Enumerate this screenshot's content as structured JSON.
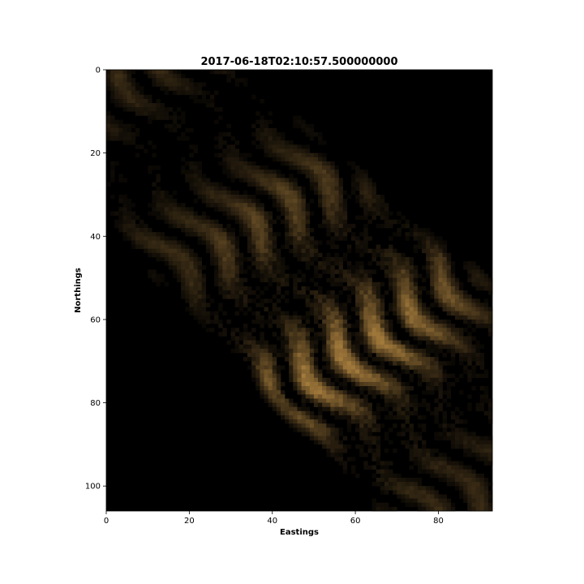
{
  "chart_data": {
    "type": "heatmap",
    "title": "2017-06-18T02:10:57.500000000",
    "xlabel": "Eastings",
    "ylabel": "Northings",
    "xlim": [
      0,
      93
    ],
    "ylim": [
      106,
      0
    ],
    "x_ticks": [
      0,
      20,
      40,
      60,
      80
    ],
    "y_ticks": [
      0,
      20,
      40,
      60,
      80,
      100
    ],
    "grid": false,
    "legend": "none",
    "colors": {
      "background": "#000000",
      "bright": "#a27a3c",
      "mid": "#5a4020",
      "dark": "#1c1208"
    },
    "field": {
      "ridge_direction": "northwest-to-southeast",
      "texture": "wavy ridges, brighter toward lower-center",
      "dark_region": "upper-right and lower-left corners"
    }
  }
}
